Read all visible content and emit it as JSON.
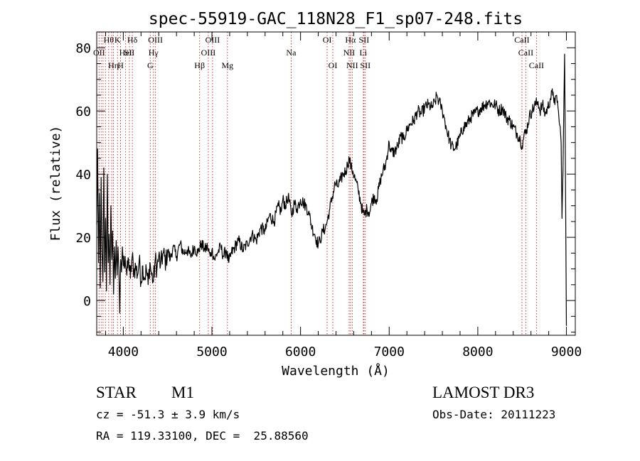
{
  "chart_data": {
    "type": "line",
    "title": "spec-55919-GAC_118N28_F1_sp07-248.fits",
    "xlabel": "Wavelength (Å)",
    "ylabel": "Flux (relative)",
    "xlim": [
      3700,
      9100
    ],
    "ylim": [
      -11,
      85
    ],
    "xticks": [
      4000,
      5000,
      6000,
      7000,
      8000,
      9000
    ],
    "yticks": [
      0,
      20,
      40,
      60,
      80
    ],
    "x_minor_step": 200,
    "y_minor_step": 5,
    "series": [
      {
        "name": "spectrum",
        "points": [
          [
            3700,
            24
          ],
          [
            3710,
            48
          ],
          [
            3720,
            12
          ],
          [
            3730,
            34
          ],
          [
            3740,
            4
          ],
          [
            3750,
            39
          ],
          [
            3760,
            15
          ],
          [
            3770,
            6
          ],
          [
            3780,
            42
          ],
          [
            3790,
            9
          ],
          [
            3800,
            26
          ],
          [
            3810,
            3
          ],
          [
            3820,
            40
          ],
          [
            3830,
            12
          ],
          [
            3840,
            21
          ],
          [
            3850,
            5
          ],
          [
            3860,
            30
          ],
          [
            3870,
            13
          ],
          [
            3880,
            22
          ],
          [
            3890,
            2
          ],
          [
            3900,
            17
          ],
          [
            3910,
            7
          ],
          [
            3920,
            19
          ],
          [
            3930,
            8
          ],
          [
            3940,
            17
          ],
          [
            3950,
            10
          ],
          [
            3960,
            -4
          ],
          [
            3970,
            13
          ],
          [
            3980,
            9
          ],
          [
            3990,
            17
          ],
          [
            4000,
            11
          ],
          [
            4020,
            14
          ],
          [
            4040,
            8
          ],
          [
            4060,
            13
          ],
          [
            4080,
            7
          ],
          [
            4100,
            14
          ],
          [
            4120,
            9
          ],
          [
            4140,
            11
          ],
          [
            4160,
            8
          ],
          [
            4180,
            13
          ],
          [
            4200,
            6
          ],
          [
            4220,
            11
          ],
          [
            4240,
            7
          ],
          [
            4260,
            10
          ],
          [
            4280,
            5
          ],
          [
            4300,
            12
          ],
          [
            4320,
            8
          ],
          [
            4340,
            6
          ],
          [
            4360,
            13
          ],
          [
            4380,
            10
          ],
          [
            4400,
            14
          ],
          [
            4420,
            11
          ],
          [
            4450,
            15
          ],
          [
            4480,
            12
          ],
          [
            4500,
            16
          ],
          [
            4530,
            13
          ],
          [
            4560,
            17
          ],
          [
            4600,
            14
          ],
          [
            4640,
            18
          ],
          [
            4680,
            15
          ],
          [
            4720,
            16
          ],
          [
            4760,
            14
          ],
          [
            4800,
            17
          ],
          [
            4840,
            15
          ],
          [
            4880,
            18
          ],
          [
            4920,
            16
          ],
          [
            4950,
            17
          ],
          [
            4980,
            14
          ],
          [
            5000,
            16
          ],
          [
            5030,
            13
          ],
          [
            5060,
            15
          ],
          [
            5100,
            17
          ],
          [
            5130,
            14
          ],
          [
            5160,
            16
          ],
          [
            5190,
            12
          ],
          [
            5220,
            15
          ],
          [
            5260,
            17
          ],
          [
            5300,
            19
          ],
          [
            5350,
            16
          ],
          [
            5400,
            18
          ],
          [
            5450,
            21
          ],
          [
            5500,
            19
          ],
          [
            5550,
            23
          ],
          [
            5600,
            22
          ],
          [
            5650,
            27
          ],
          [
            5700,
            25
          ],
          [
            5750,
            30
          ],
          [
            5780,
            28
          ],
          [
            5800,
            32
          ],
          [
            5830,
            30
          ],
          [
            5860,
            33
          ],
          [
            5900,
            27
          ],
          [
            5930,
            31
          ],
          [
            5960,
            29
          ],
          [
            6000,
            32
          ],
          [
            6030,
            31
          ],
          [
            6060,
            30
          ],
          [
            6090,
            28
          ],
          [
            6100,
            27
          ],
          [
            6130,
            23
          ],
          [
            6160,
            21
          ],
          [
            6180,
            19
          ],
          [
            6200,
            18
          ],
          [
            6220,
            19
          ],
          [
            6250,
            22
          ],
          [
            6280,
            23
          ],
          [
            6300,
            25
          ],
          [
            6330,
            29
          ],
          [
            6360,
            33
          ],
          [
            6390,
            37
          ],
          [
            6420,
            36
          ],
          [
            6450,
            38
          ],
          [
            6480,
            40
          ],
          [
            6510,
            41
          ],
          [
            6530,
            43
          ],
          [
            6550,
            45
          ],
          [
            6570,
            42
          ],
          [
            6590,
            41
          ],
          [
            6620,
            38
          ],
          [
            6650,
            35
          ],
          [
            6680,
            31
          ],
          [
            6700,
            28
          ],
          [
            6720,
            27
          ],
          [
            6750,
            29
          ],
          [
            6780,
            28
          ],
          [
            6800,
            31
          ],
          [
            6830,
            33
          ],
          [
            6860,
            32
          ],
          [
            6900,
            38
          ],
          [
            6930,
            41
          ],
          [
            6960,
            43
          ],
          [
            7000,
            50
          ],
          [
            7020,
            47
          ],
          [
            7060,
            47
          ],
          [
            7100,
            49
          ],
          [
            7130,
            52
          ],
          [
            7160,
            51
          ],
          [
            7200,
            54
          ],
          [
            7240,
            56
          ],
          [
            7280,
            57
          ],
          [
            7320,
            60
          ],
          [
            7360,
            59
          ],
          [
            7400,
            61
          ],
          [
            7440,
            62
          ],
          [
            7480,
            61
          ],
          [
            7520,
            63
          ],
          [
            7540,
            65
          ],
          [
            7560,
            63
          ],
          [
            7580,
            62
          ],
          [
            7600,
            60
          ],
          [
            7620,
            58
          ],
          [
            7650,
            54
          ],
          [
            7680,
            51
          ],
          [
            7700,
            49
          ],
          [
            7730,
            48
          ],
          [
            7760,
            49
          ],
          [
            7800,
            52
          ],
          [
            7840,
            55
          ],
          [
            7880,
            56
          ],
          [
            7920,
            58
          ],
          [
            7960,
            59
          ],
          [
            8000,
            60
          ],
          [
            8040,
            61
          ],
          [
            8080,
            62
          ],
          [
            8120,
            63
          ],
          [
            8160,
            62
          ],
          [
            8200,
            62
          ],
          [
            8240,
            60
          ],
          [
            8280,
            61
          ],
          [
            8320,
            58
          ],
          [
            8360,
            57
          ],
          [
            8400,
            55
          ],
          [
            8440,
            53
          ],
          [
            8480,
            51
          ],
          [
            8500,
            49
          ],
          [
            8520,
            52
          ],
          [
            8550,
            54
          ],
          [
            8580,
            58
          ],
          [
            8610,
            60
          ],
          [
            8650,
            62
          ],
          [
            8680,
            63
          ],
          [
            8700,
            60
          ],
          [
            8730,
            62
          ],
          [
            8760,
            59
          ],
          [
            8790,
            61
          ],
          [
            8820,
            64
          ],
          [
            8850,
            66
          ],
          [
            8870,
            62
          ],
          [
            8890,
            65
          ],
          [
            8910,
            60
          ],
          [
            8920,
            56
          ],
          [
            8930,
            55
          ],
          [
            8940,
            50
          ],
          [
            8950,
            26
          ],
          [
            8960,
            40
          ],
          [
            8970,
            60
          ],
          [
            8980,
            78
          ],
          [
            9000,
            -8
          ]
        ]
      }
    ],
    "lines": [
      {
        "x": 3727,
        "label": "OII",
        "row": 1
      },
      {
        "x": 3750,
        "label": "",
        "row": 0
      },
      {
        "x": 3771,
        "label": "",
        "row": 0
      },
      {
        "x": 3798,
        "label": "",
        "row": 0
      },
      {
        "x": 3835,
        "label": "Hθ",
        "row": 0
      },
      {
        "x": 3869,
        "label": "",
        "row": 0
      },
      {
        "x": 3889,
        "label": "Hη",
        "row": 2
      },
      {
        "x": 3934,
        "label": "K",
        "row": 0
      },
      {
        "x": 3969,
        "label": "H",
        "row": 2
      },
      {
        "x": 4026,
        "label": "HeI",
        "row": 1
      },
      {
        "x": 4069,
        "label": "SII",
        "row": 1
      },
      {
        "x": 4102,
        "label": "Hδ",
        "row": 0
      },
      {
        "x": 4304,
        "label": "G",
        "row": 2
      },
      {
        "x": 4340,
        "label": "Hγ",
        "row": 1
      },
      {
        "x": 4363,
        "label": "OIII",
        "row": 0
      },
      {
        "x": 4861,
        "label": "Hβ",
        "row": 2
      },
      {
        "x": 4959,
        "label": "OIII",
        "row": 1
      },
      {
        "x": 5007,
        "label": "OIII",
        "row": 0
      },
      {
        "x": 5175,
        "label": "Mg",
        "row": 2
      },
      {
        "x": 5894,
        "label": "Na",
        "row": 1
      },
      {
        "x": 6300,
        "label": "OI",
        "row": 0
      },
      {
        "x": 6364,
        "label": "OI",
        "row": 2
      },
      {
        "x": 6548,
        "label": "NII",
        "row": 1
      },
      {
        "x": 6563,
        "label": "Hα",
        "row": 0
      },
      {
        "x": 6583,
        "label": "NII",
        "row": 2
      },
      {
        "x": 6708,
        "label": "Li",
        "row": 1
      },
      {
        "x": 6716,
        "label": "SII",
        "row": 0
      },
      {
        "x": 6731,
        "label": "SII",
        "row": 2
      },
      {
        "x": 8498,
        "label": "CaII",
        "row": 0
      },
      {
        "x": 8542,
        "label": "CaII",
        "row": 1
      },
      {
        "x": 8662,
        "label": "CaII",
        "row": 2
      }
    ]
  },
  "info": {
    "class": "STAR",
    "subclass": "M1",
    "survey": "LAMOST DR3",
    "cz": "cz = -51.3 ± 3.9 km/s",
    "obs_date": "Obs-Date: 20111223",
    "radec": "RA = 119.33100, DEC =  25.88560"
  }
}
